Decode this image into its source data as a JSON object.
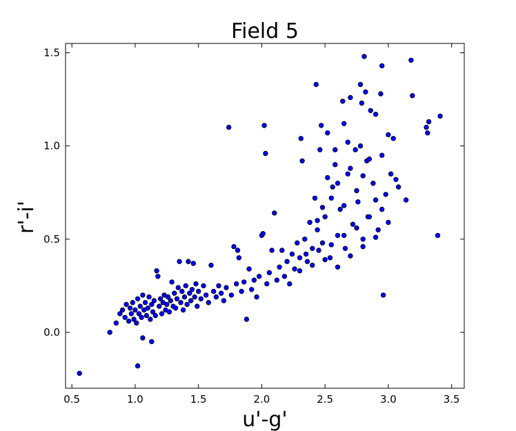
{
  "chart_data": {
    "type": "scatter",
    "title": "Field 5",
    "xlabel": "u'-g'",
    "ylabel": "r'-i'",
    "xlim": [
      0.45,
      3.6
    ],
    "ylim": [
      -0.3,
      1.55
    ],
    "xticks": [
      0.5,
      1.0,
      1.5,
      2.0,
      2.5,
      3.0,
      3.5
    ],
    "xtick_labels": [
      "0.5",
      "1.0",
      "1.5",
      "2.0",
      "2.5",
      "3.0",
      "3.5"
    ],
    "yticks": [
      0.0,
      0.5,
      1.0,
      1.5
    ],
    "ytick_labels": [
      "0.0",
      "0.5",
      "1.0",
      "1.5"
    ],
    "grid": false,
    "marker_color": "#0000ff",
    "marker_edge": "#000000",
    "series": [
      {
        "points": [
          [
            0.56,
            -0.22
          ],
          [
            0.8,
            0.0
          ],
          [
            1.02,
            -0.18
          ],
          [
            1.06,
            -0.03
          ],
          [
            1.13,
            -0.05
          ],
          [
            0.85,
            0.05
          ],
          [
            0.88,
            0.1
          ],
          [
            0.9,
            0.12
          ],
          [
            0.92,
            0.08
          ],
          [
            0.93,
            0.15
          ],
          [
            0.95,
            0.06
          ],
          [
            0.96,
            0.13
          ],
          [
            0.97,
            0.1
          ],
          [
            0.98,
            0.16
          ],
          [
            0.99,
            0.07
          ],
          [
            1.0,
            0.12
          ],
          [
            1.01,
            0.05
          ],
          [
            1.02,
            0.18
          ],
          [
            1.03,
            0.1
          ],
          [
            1.04,
            0.14
          ],
          [
            1.05,
            0.08
          ],
          [
            1.06,
            0.2
          ],
          [
            1.07,
            0.12
          ],
          [
            1.08,
            0.16
          ],
          [
            1.09,
            0.09
          ],
          [
            1.1,
            0.13
          ],
          [
            1.11,
            0.19
          ],
          [
            1.12,
            0.07
          ],
          [
            1.13,
            0.15
          ],
          [
            1.14,
            0.11
          ],
          [
            1.15,
            0.17
          ],
          [
            1.16,
            0.09
          ],
          [
            1.17,
            0.33
          ],
          [
            1.18,
            0.3
          ],
          [
            1.19,
            0.14
          ],
          [
            1.2,
            0.18
          ],
          [
            1.21,
            0.1
          ],
          [
            1.22,
            0.16
          ],
          [
            1.23,
            0.2
          ],
          [
            1.24,
            0.12
          ],
          [
            1.25,
            0.15
          ],
          [
            1.26,
            0.19
          ],
          [
            1.27,
            0.11
          ],
          [
            1.28,
            0.17
          ],
          [
            1.29,
            0.27
          ],
          [
            1.3,
            0.14
          ],
          [
            1.31,
            0.21
          ],
          [
            1.32,
            0.13
          ],
          [
            1.33,
            0.18
          ],
          [
            1.34,
            0.24
          ],
          [
            1.35,
            0.38
          ],
          [
            1.36,
            0.16
          ],
          [
            1.37,
            0.22
          ],
          [
            1.38,
            0.12
          ],
          [
            1.39,
            0.19
          ],
          [
            1.4,
            0.25
          ],
          [
            1.41,
            0.15
          ],
          [
            1.42,
            0.38
          ],
          [
            1.43,
            0.21
          ],
          [
            1.44,
            0.17
          ],
          [
            1.45,
            0.23
          ],
          [
            1.46,
            0.37
          ],
          [
            1.47,
            0.19
          ],
          [
            1.48,
            0.26
          ],
          [
            1.49,
            0.14
          ],
          [
            1.5,
            0.22
          ],
          [
            1.52,
            0.18
          ],
          [
            1.54,
            0.25
          ],
          [
            1.56,
            0.2
          ],
          [
            1.58,
            0.16
          ],
          [
            1.6,
            0.36
          ],
          [
            1.62,
            0.22
          ],
          [
            1.64,
            0.19
          ],
          [
            1.66,
            0.25
          ],
          [
            1.68,
            0.21
          ],
          [
            1.7,
            0.17
          ],
          [
            1.72,
            0.24
          ],
          [
            1.74,
            1.1
          ],
          [
            1.76,
            0.2
          ],
          [
            1.78,
            0.46
          ],
          [
            1.8,
            0.26
          ],
          [
            1.81,
            0.44
          ],
          [
            1.82,
            0.4
          ],
          [
            1.84,
            0.22
          ],
          [
            1.86,
            0.27
          ],
          [
            1.88,
            0.07
          ],
          [
            1.9,
            0.34
          ],
          [
            1.92,
            0.23
          ],
          [
            1.94,
            0.28
          ],
          [
            1.96,
            0.19
          ],
          [
            1.98,
            0.3
          ],
          [
            2.0,
            0.52
          ],
          [
            2.01,
            0.53
          ],
          [
            2.02,
            1.11
          ],
          [
            2.03,
            0.96
          ],
          [
            2.04,
            0.26
          ],
          [
            2.06,
            0.32
          ],
          [
            2.08,
            0.44
          ],
          [
            2.1,
            0.64
          ],
          [
            2.12,
            0.28
          ],
          [
            2.14,
            0.35
          ],
          [
            2.16,
            0.44
          ],
          [
            2.18,
            0.3
          ],
          [
            2.2,
            0.38
          ],
          [
            2.22,
            0.26
          ],
          [
            2.24,
            0.42
          ],
          [
            2.26,
            0.34
          ],
          [
            2.28,
            0.48
          ],
          [
            2.3,
            0.4
          ],
          [
            2.31,
            1.04
          ],
          [
            2.32,
            0.92
          ],
          [
            2.34,
            0.5
          ],
          [
            2.36,
            0.38
          ],
          [
            2.38,
            0.59
          ],
          [
            2.4,
            0.45
          ],
          [
            2.42,
            0.72
          ],
          [
            2.43,
            1.33
          ],
          [
            2.44,
            0.55
          ],
          [
            2.46,
            0.98
          ],
          [
            2.47,
            1.11
          ],
          [
            2.48,
            0.48
          ],
          [
            2.5,
            0.62
          ],
          [
            2.52,
            1.07
          ],
          [
            2.54,
            0.4
          ],
          [
            2.56,
            0.78
          ],
          [
            2.58,
            0.9
          ],
          [
            2.6,
            0.52
          ],
          [
            2.62,
            0.66
          ],
          [
            2.64,
            1.24
          ],
          [
            2.65,
            1.12
          ],
          [
            2.66,
            0.45
          ],
          [
            2.68,
            0.85
          ],
          [
            2.7,
            1.26
          ],
          [
            2.72,
            0.58
          ],
          [
            2.74,
            0.98
          ],
          [
            2.76,
            0.7
          ],
          [
            2.78,
            1.33
          ],
          [
            2.79,
            1.23
          ],
          [
            2.8,
            0.5
          ],
          [
            2.81,
            1.48
          ],
          [
            2.82,
            1.29
          ],
          [
            2.83,
            0.92
          ],
          [
            2.84,
            0.62
          ],
          [
            2.86,
            1.19
          ],
          [
            2.88,
            0.8
          ],
          [
            2.9,
            1.17
          ],
          [
            2.92,
            0.55
          ],
          [
            2.94,
            1.28
          ],
          [
            2.95,
            1.43
          ],
          [
            2.96,
            0.2
          ],
          [
            2.98,
            0.74
          ],
          [
            3.0,
            1.06
          ],
          [
            3.02,
            0.85
          ],
          [
            3.04,
            1.04
          ],
          [
            3.06,
            0.82
          ],
          [
            3.08,
            0.78
          ],
          [
            3.14,
            0.71
          ],
          [
            3.18,
            1.46
          ],
          [
            3.19,
            1.27
          ],
          [
            3.3,
            1.1
          ],
          [
            3.31,
            1.07
          ],
          [
            3.32,
            1.13
          ],
          [
            3.39,
            0.52
          ],
          [
            3.41,
            1.16
          ],
          [
            2.3,
            0.33
          ],
          [
            2.35,
            0.42
          ],
          [
            2.4,
            0.36
          ],
          [
            2.45,
            0.44
          ],
          [
            2.5,
            0.39
          ],
          [
            2.55,
            0.47
          ],
          [
            2.6,
            0.35
          ],
          [
            2.65,
            0.52
          ],
          [
            2.7,
            0.41
          ],
          [
            2.75,
            0.56
          ],
          [
            2.8,
            0.46
          ],
          [
            2.85,
            0.62
          ],
          [
            2.9,
            0.51
          ],
          [
            2.95,
            0.66
          ],
          [
            3.0,
            0.59
          ],
          [
            2.55,
            0.72
          ],
          [
            2.6,
            0.8
          ],
          [
            2.65,
            0.68
          ],
          [
            2.7,
            0.88
          ],
          [
            2.75,
            0.76
          ],
          [
            2.8,
            0.84
          ],
          [
            2.85,
            0.93
          ],
          [
            2.9,
            0.71
          ],
          [
            2.95,
            0.95
          ],
          [
            2.52,
            0.83
          ],
          [
            2.48,
            0.67
          ],
          [
            2.44,
            0.6
          ],
          [
            2.58,
            0.98
          ],
          [
            2.68,
            1.02
          ],
          [
            2.78,
            1.0
          ]
        ]
      }
    ]
  }
}
